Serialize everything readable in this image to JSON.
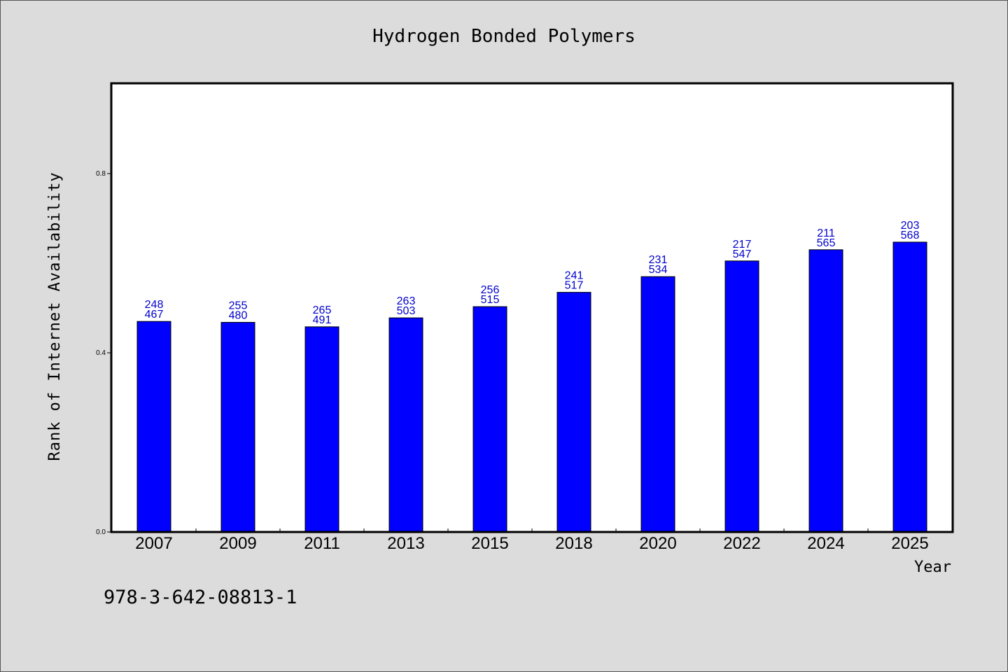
{
  "chart_data": {
    "type": "bar",
    "title": "Hydrogen Bonded Polymers",
    "xlabel": "Year",
    "ylabel": "Rank of Internet Availability",
    "ylim": [
      0,
      1.0
    ],
    "yticks": [
      "0.0",
      "0.4",
      "0.8"
    ],
    "ytick_values": [
      0.0,
      0.4,
      0.8
    ],
    "categories": [
      "2007",
      "2009",
      "2011",
      "2013",
      "2015",
      "2018",
      "2020",
      "2022",
      "2024",
      "2025"
    ],
    "values": [
      0.47,
      0.468,
      0.458,
      0.478,
      0.503,
      0.535,
      0.57,
      0.605,
      0.63,
      0.647
    ],
    "labels_top": [
      "248",
      "255",
      "265",
      "263",
      "256",
      "241",
      "231",
      "217",
      "211",
      "203"
    ],
    "labels_bottom": [
      "467",
      "480",
      "491",
      "503",
      "515",
      "517",
      "534",
      "547",
      "565",
      "568"
    ],
    "bar_color": "#0000ff",
    "label_color": "#0000cc",
    "grid": false,
    "legend": "none"
  },
  "footer": {
    "isbn": "978-3-642-08813-1"
  }
}
